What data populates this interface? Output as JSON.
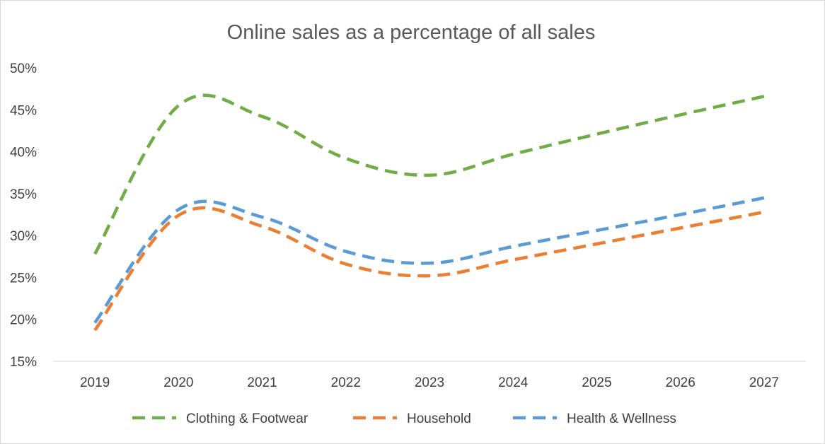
{
  "chart_data": {
    "type": "line",
    "title": "Online sales as a percentage of all sales",
    "xlabel": "",
    "ylabel": "",
    "categories": [
      "2019",
      "2020",
      "2021",
      "2022",
      "2023",
      "2024",
      "2025",
      "2026",
      "2027"
    ],
    "ylim": [
      15,
      50
    ],
    "yticks": [
      15,
      20,
      25,
      30,
      35,
      40,
      45,
      50
    ],
    "ytick_labels": [
      "15%",
      "20%",
      "25%",
      "30%",
      "35%",
      "40%",
      "45%",
      "50%"
    ],
    "grid": false,
    "legend_position": "bottom",
    "line_style": "dashed",
    "series": [
      {
        "name": "Clothing & Footwear",
        "color": "#70ad47",
        "values": [
          27.8,
          45.5,
          44.2,
          39.2,
          37.2,
          39.7,
          42.1,
          44.4,
          46.6
        ]
      },
      {
        "name": "Household",
        "color": "#ed7d31",
        "values": [
          18.7,
          32.4,
          31.1,
          26.6,
          25.2,
          27.1,
          29.0,
          30.9,
          32.8
        ]
      },
      {
        "name": "Health & Wellness",
        "color": "#5b9bd5",
        "values": [
          19.6,
          33.1,
          32.2,
          28.1,
          26.7,
          28.7,
          30.6,
          32.5,
          34.5
        ]
      }
    ]
  }
}
